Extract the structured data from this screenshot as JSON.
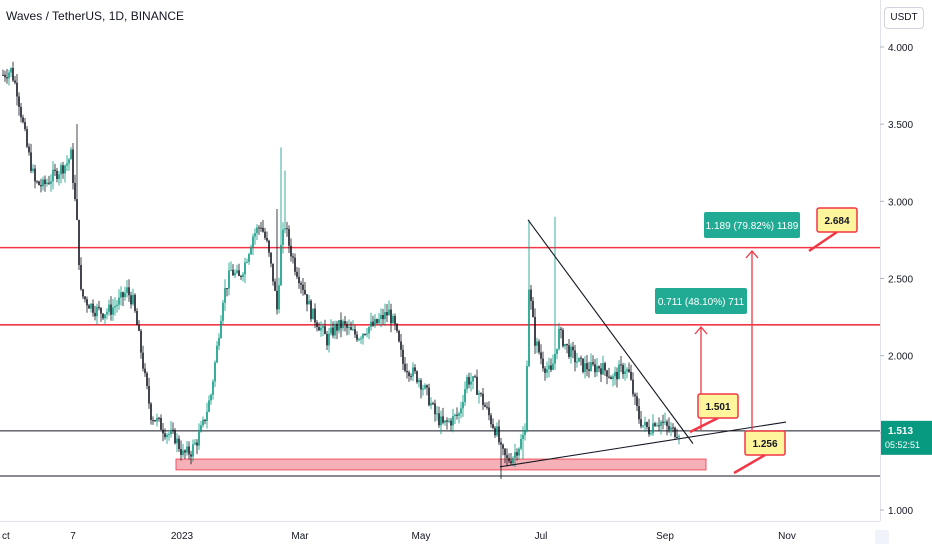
{
  "header": {
    "symbol": "Waves / TetherUS, 1D, BINANCE",
    "currency_button": "USDT"
  },
  "chart_data": {
    "type": "candlestick",
    "title": "Waves / TetherUS, 1D, BINANCE",
    "yticks": [
      "4.000",
      "3.500",
      "3.000",
      "2.500",
      "2.000",
      "1.500",
      "1.000"
    ],
    "ytick_values": [
      4.0,
      3.5,
      3.0,
      2.5,
      2.0,
      1.5,
      1.0
    ],
    "xticks": [
      "Oct",
      "7",
      "2023",
      "Mar",
      "May",
      "Jul",
      "Sep",
      "Nov"
    ],
    "ylim": [
      0.92,
      4.1
    ],
    "last_price": "1.513",
    "countdown": "05:52:51",
    "horizontal_levels": [
      2.684,
      2.2,
      1.513,
      1.256
    ],
    "support_zone": [
      1.26,
      1.33
    ],
    "trendlines": [
      {
        "from": [
          "Jun 26",
          2.88
        ],
        "to": [
          "Sep 12",
          1.43
        ]
      },
      {
        "from": [
          "Jun 19",
          1.28
        ],
        "to": [
          "Nov 10",
          1.57
        ]
      }
    ],
    "measures": [
      {
        "label": "0.711 (48.10%) 711"
      },
      {
        "label": "1.189 (79.82%) 1189"
      }
    ],
    "callouts": [
      "1.501",
      "1.256",
      "2.684"
    ],
    "path": [
      [
        0,
        3.82
      ],
      [
        4,
        3.85
      ],
      [
        7,
        3.72
      ],
      [
        12,
        3.35
      ],
      [
        16,
        3.12
      ],
      [
        20,
        3.1
      ],
      [
        24,
        3.15
      ],
      [
        28,
        3.2
      ],
      [
        32,
        3.25
      ],
      [
        34,
        3.3
      ],
      [
        37,
        2.85
      ],
      [
        39,
        2.4
      ],
      [
        42,
        2.35
      ],
      [
        46,
        2.3
      ],
      [
        50,
        2.28
      ],
      [
        54,
        2.3
      ],
      [
        58,
        2.35
      ],
      [
        62,
        2.42
      ],
      [
        65,
        2.35
      ],
      [
        68,
        2.12
      ],
      [
        71,
        1.85
      ],
      [
        74,
        1.62
      ],
      [
        78,
        1.56
      ],
      [
        82,
        1.5
      ],
      [
        86,
        1.47
      ],
      [
        90,
        1.36
      ],
      [
        94,
        1.38
      ],
      [
        97,
        1.45
      ],
      [
        100,
        1.55
      ],
      [
        104,
        1.75
      ],
      [
        107,
        2.05
      ],
      [
        110,
        2.38
      ],
      [
        114,
        2.55
      ],
      [
        118,
        2.5
      ],
      [
        121,
        2.6
      ],
      [
        125,
        2.78
      ],
      [
        129,
        2.85
      ],
      [
        132,
        2.72
      ],
      [
        135,
        2.5
      ],
      [
        137,
        2.3
      ],
      [
        139,
        2.7
      ],
      [
        141,
        2.85
      ],
      [
        143,
        2.72
      ],
      [
        146,
        2.58
      ],
      [
        150,
        2.45
      ],
      [
        154,
        2.28
      ],
      [
        158,
        2.2
      ],
      [
        162,
        2.1
      ],
      [
        166,
        2.18
      ],
      [
        170,
        2.2
      ],
      [
        174,
        2.15
      ],
      [
        178,
        2.13
      ],
      [
        182,
        2.18
      ],
      [
        186,
        2.2
      ],
      [
        190,
        2.25
      ],
      [
        193,
        2.28
      ],
      [
        196,
        2.18
      ],
      [
        200,
        1.95
      ],
      [
        204,
        1.9
      ],
      [
        208,
        1.85
      ],
      [
        212,
        1.75
      ],
      [
        216,
        1.62
      ],
      [
        220,
        1.55
      ],
      [
        224,
        1.58
      ],
      [
        228,
        1.62
      ],
      [
        232,
        1.85
      ],
      [
        236,
        1.82
      ],
      [
        240,
        1.7
      ],
      [
        244,
        1.58
      ],
      [
        247,
        1.5
      ],
      [
        249,
        1.38
      ],
      [
        252,
        1.32
      ],
      [
        255,
        1.35
      ],
      [
        258,
        1.42
      ],
      [
        261,
        1.5
      ],
      [
        263,
        2.45
      ],
      [
        266,
        2.1
      ],
      [
        270,
        1.95
      ],
      [
        274,
        1.88
      ],
      [
        278,
        2.15
      ],
      [
        282,
        2.05
      ],
      [
        286,
        1.98
      ],
      [
        290,
        1.93
      ],
      [
        294,
        1.92
      ],
      [
        298,
        1.93
      ],
      [
        302,
        1.9
      ],
      [
        305,
        1.85
      ],
      [
        308,
        1.9
      ],
      [
        311,
        1.92
      ],
      [
        313,
        1.88
      ],
      [
        316,
        1.7
      ],
      [
        318,
        1.6
      ],
      [
        320,
        1.55
      ],
      [
        323,
        1.52
      ],
      [
        326,
        1.58
      ],
      [
        329,
        1.57
      ],
      [
        332,
        1.53
      ],
      [
        335,
        1.51
      ],
      [
        338,
        1.513
      ]
    ]
  },
  "colors": {
    "up": "#089981",
    "down": "#131722",
    "level_line": "#f23645",
    "support_fill": "#f5a3ab",
    "measure_line": "#f23645",
    "measure_fill": "#22ab94",
    "callout_fill": "#fff59d",
    "price_label_bg": "#089981",
    "axis_text": "#131722"
  }
}
